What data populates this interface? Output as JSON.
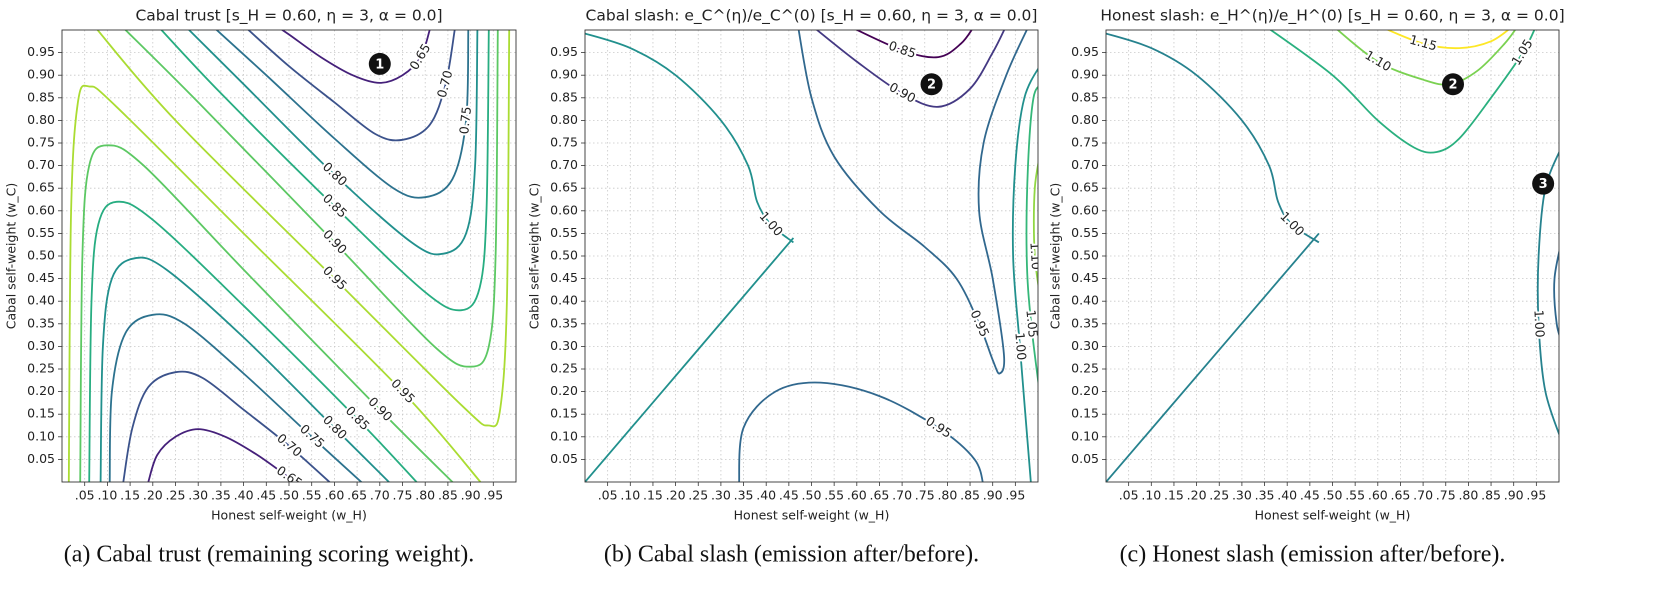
{
  "chart_data": [
    {
      "type": "contour",
      "title": "Cabal trust [s_H = 0.60, η = 3, α = 0.0]",
      "xlabel": "Honest self-weight (w_H)",
      "ylabel": "Cabal self-weight (w_C)",
      "caption": "(a) Cabal trust (remaining scoring weight).",
      "xlim": [
        0,
        1
      ],
      "ylim": [
        0,
        1
      ],
      "grid": true,
      "xticks": [
        {
          "value": 0.05,
          "label": ".05"
        },
        {
          "value": 0.1,
          "label": ".10"
        },
        {
          "value": 0.15,
          "label": ".15"
        },
        {
          "value": 0.2,
          "label": ".20"
        },
        {
          "value": 0.25,
          "label": ".25"
        },
        {
          "value": 0.3,
          "label": ".30"
        },
        {
          "value": 0.35,
          "label": ".35"
        },
        {
          "value": 0.4,
          "label": ".40"
        },
        {
          "value": 0.45,
          "label": ".45"
        },
        {
          "value": 0.5,
          "label": ".50"
        },
        {
          "value": 0.55,
          "label": ".55"
        },
        {
          "value": 0.6,
          "label": ".60"
        },
        {
          "value": 0.65,
          "label": ".65"
        },
        {
          "value": 0.7,
          "label": ".70"
        },
        {
          "value": 0.75,
          "label": ".75"
        },
        {
          "value": 0.8,
          "label": ".80"
        },
        {
          "value": 0.85,
          "label": ".85"
        },
        {
          "value": 0.9,
          "label": ".90"
        },
        {
          "value": 0.95,
          "label": ".95"
        }
      ],
      "yticks": [
        0.05,
        {
          "value": 0.1,
          "label": "0.10"
        },
        0.15,
        {
          "value": 0.2,
          "label": "0.20"
        },
        0.25,
        {
          "value": 0.3,
          "label": "0.30"
        },
        0.35,
        {
          "value": 0.4,
          "label": "0.40"
        },
        0.45,
        {
          "value": 0.5,
          "label": "0.50"
        },
        0.55,
        {
          "value": 0.6,
          "label": "0.60"
        },
        0.65,
        {
          "value": 0.7,
          "label": "0.70"
        },
        0.75,
        {
          "value": 0.8,
          "label": "0.80"
        },
        0.85,
        {
          "value": 0.9,
          "label": "0.90"
        },
        0.95
      ],
      "levels": [
        {
          "value": 0.65,
          "label": "0.65",
          "color": "#45207a"
        },
        {
          "value": 0.7,
          "label": "0.70",
          "color": "#3b528b"
        },
        {
          "value": 0.75,
          "label": "0.75",
          "color": "#2c728e"
        },
        {
          "value": 0.8,
          "label": "0.80",
          "color": "#21908d"
        },
        {
          "value": 0.85,
          "label": "0.85",
          "color": "#27ad81"
        },
        {
          "value": 0.9,
          "label": "0.90",
          "color": "#5cc863"
        },
        {
          "value": 0.95,
          "label": "0.95",
          "color": "#aadc32"
        }
      ],
      "annotations": [
        {
          "text": "1"
        }
      ]
    },
    {
      "type": "contour",
      "title": "Cabal slash: e_C^(η)/e_C^(0) [s_H = 0.60, η = 3, α = 0.0]",
      "xlabel": "Honest self-weight (w_H)",
      "ylabel": "Cabal self-weight (w_C)",
      "caption": "(b) Cabal slash (emission after/before).",
      "xlim": [
        0,
        1
      ],
      "ylim": [
        0,
        1
      ],
      "grid": true,
      "xticks": [
        {
          "value": 0.05,
          "label": ".05"
        },
        {
          "value": 0.1,
          "label": ".10"
        },
        {
          "value": 0.15,
          "label": ".15"
        },
        {
          "value": 0.2,
          "label": ".20"
        },
        {
          "value": 0.25,
          "label": ".25"
        },
        {
          "value": 0.3,
          "label": ".30"
        },
        {
          "value": 0.35,
          "label": ".35"
        },
        {
          "value": 0.4,
          "label": ".40"
        },
        {
          "value": 0.45,
          "label": ".45"
        },
        {
          "value": 0.5,
          "label": ".50"
        },
        {
          "value": 0.55,
          "label": ".55"
        },
        {
          "value": 0.6,
          "label": ".60"
        },
        {
          "value": 0.65,
          "label": ".65"
        },
        {
          "value": 0.7,
          "label": ".70"
        },
        {
          "value": 0.75,
          "label": ".75"
        },
        {
          "value": 0.8,
          "label": ".80"
        },
        {
          "value": 0.85,
          "label": ".85"
        },
        {
          "value": 0.9,
          "label": ".90"
        },
        {
          "value": 0.95,
          "label": ".95"
        }
      ],
      "yticks": [
        0.05,
        {
          "value": 0.1,
          "label": "0.10"
        },
        0.15,
        {
          "value": 0.2,
          "label": "0.20"
        },
        0.25,
        {
          "value": 0.3,
          "label": "0.30"
        },
        0.35,
        {
          "value": 0.4,
          "label": "0.40"
        },
        0.45,
        {
          "value": 0.5,
          "label": "0.50"
        },
        0.55,
        {
          "value": 0.6,
          "label": "0.60"
        },
        0.65,
        {
          "value": 0.7,
          "label": "0.70"
        },
        0.75,
        {
          "value": 0.8,
          "label": "0.80"
        },
        0.85,
        {
          "value": 0.9,
          "label": "0.90"
        },
        0.95
      ],
      "levels": [
        {
          "value": 0.85,
          "label": "0.85",
          "color": "#440154"
        },
        {
          "value": 0.9,
          "label": "0.90",
          "color": "#443983"
        },
        {
          "value": 0.95,
          "label": "0.95",
          "color": "#31688e"
        },
        {
          "value": 1.0,
          "label": "1.00",
          "color": "#21908d"
        },
        {
          "value": 1.05,
          "label": "1.05",
          "color": "#35b779"
        },
        {
          "value": 1.1,
          "label": "1.10",
          "color": "#90d743"
        }
      ],
      "annotations": [
        {
          "text": "2"
        }
      ]
    },
    {
      "type": "contour",
      "title": "Honest slash: e_H^(η)/e_H^(0) [s_H = 0.60, η = 3, α = 0.0]",
      "xlabel": "Honest self-weight (w_H)",
      "ylabel": "Cabal self-weight (w_C)",
      "caption": "(c) Honest slash (emission after/before).",
      "xlim": [
        0,
        1
      ],
      "ylim": [
        0,
        1
      ],
      "grid": true,
      "xticks": [
        {
          "value": 0.05,
          "label": ".05"
        },
        {
          "value": 0.1,
          "label": ".10"
        },
        {
          "value": 0.15,
          "label": ".15"
        },
        {
          "value": 0.2,
          "label": ".20"
        },
        {
          "value": 0.25,
          "label": ".25"
        },
        {
          "value": 0.3,
          "label": ".30"
        },
        {
          "value": 0.35,
          "label": ".35"
        },
        {
          "value": 0.4,
          "label": ".40"
        },
        {
          "value": 0.45,
          "label": ".45"
        },
        {
          "value": 0.5,
          "label": ".50"
        },
        {
          "value": 0.55,
          "label": ".55"
        },
        {
          "value": 0.6,
          "label": ".60"
        },
        {
          "value": 0.65,
          "label": ".65"
        },
        {
          "value": 0.7,
          "label": ".70"
        },
        {
          "value": 0.75,
          "label": ".75"
        },
        {
          "value": 0.8,
          "label": ".80"
        },
        {
          "value": 0.85,
          "label": ".85"
        },
        {
          "value": 0.9,
          "label": ".90"
        },
        {
          "value": 0.95,
          "label": ".95"
        }
      ],
      "yticks": [
        0.05,
        {
          "value": 0.1,
          "label": "0.10"
        },
        0.15,
        {
          "value": 0.2,
          "label": "0.20"
        },
        0.25,
        {
          "value": 0.3,
          "label": "0.30"
        },
        0.35,
        {
          "value": 0.4,
          "label": "0.40"
        },
        0.45,
        {
          "value": 0.5,
          "label": "0.50"
        },
        0.55,
        {
          "value": 0.6,
          "label": "0.60"
        },
        0.65,
        {
          "value": 0.7,
          "label": "0.70"
        },
        0.75,
        {
          "value": 0.8,
          "label": "0.80"
        },
        0.85,
        {
          "value": 0.9,
          "label": "0.90"
        },
        0.95
      ],
      "levels": [
        {
          "value": 0.95,
          "label": "0.95",
          "color": "#30678d"
        },
        {
          "value": 1.0,
          "label": "1.00",
          "color": "#26828e"
        },
        {
          "value": 1.05,
          "label": "1.05",
          "color": "#2ab07f"
        },
        {
          "value": 1.1,
          "label": "1.10",
          "color": "#7ad151"
        },
        {
          "value": 1.15,
          "label": "1.15",
          "color": "#fde725"
        }
      ],
      "annotations": [
        {
          "text": "2"
        },
        {
          "text": "3"
        }
      ]
    }
  ]
}
